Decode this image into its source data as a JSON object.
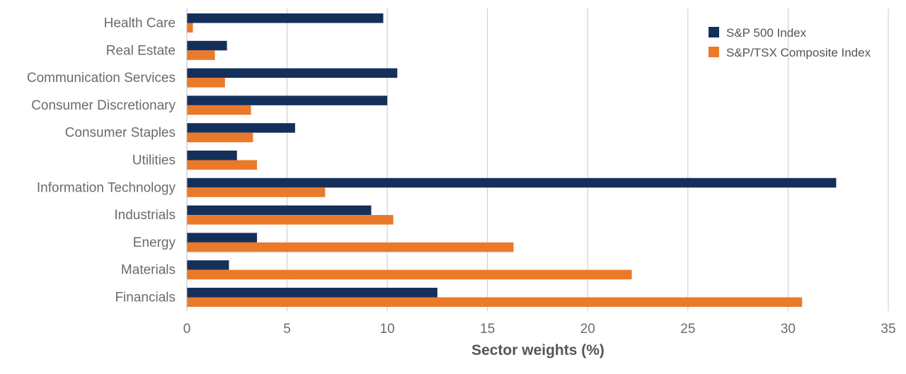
{
  "chart_data": {
    "type": "bar",
    "orientation": "horizontal",
    "categories": [
      "Health Care",
      "Real Estate",
      "Communication Services",
      "Consumer Discretionary",
      "Consumer Staples",
      "Utilities",
      "Information Technology",
      "Industrials",
      "Energy",
      "Materials",
      "Financials"
    ],
    "series": [
      {
        "name": "S&P 500 Index",
        "color": "#14305a",
        "values": [
          9.8,
          2.0,
          10.5,
          10.0,
          5.4,
          2.5,
          32.4,
          9.2,
          3.5,
          2.1,
          12.5
        ]
      },
      {
        "name": "S&P/TSX Composite Index",
        "color": "#ea7a2a",
        "values": [
          0.3,
          1.4,
          1.9,
          3.2,
          3.3,
          3.5,
          6.9,
          10.3,
          16.3,
          22.2,
          30.7
        ]
      }
    ],
    "xlabel": "Sector weights (%)",
    "ylabel": "",
    "xlim": [
      0,
      35
    ],
    "xticks": [
      0,
      5,
      10,
      15,
      20,
      25,
      30,
      35
    ],
    "grid": "vertical",
    "legend_position": "top-right"
  }
}
